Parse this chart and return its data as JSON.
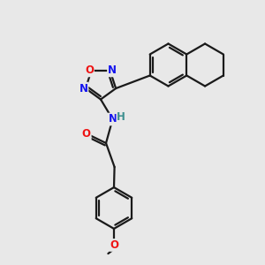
{
  "bg": "#e8e8e8",
  "bc": "#1a1a1a",
  "nc": "#1414ee",
  "oc": "#ee1414",
  "hc": "#3d8f8f",
  "lw": 1.6,
  "figsize": [
    3.0,
    3.0
  ],
  "dpi": 100,
  "xlim": [
    0,
    10
  ],
  "ylim": [
    0,
    10
  ]
}
